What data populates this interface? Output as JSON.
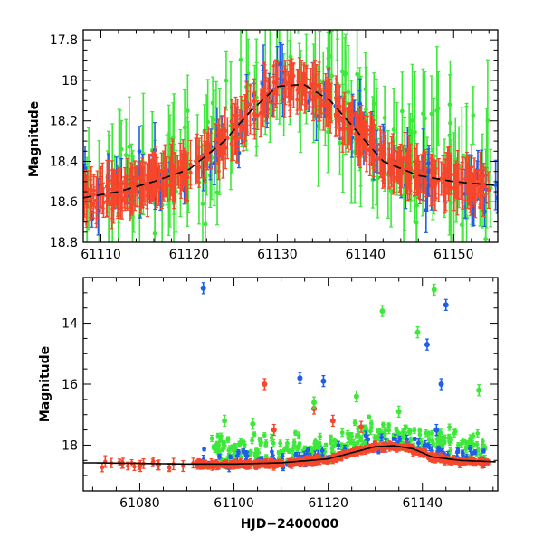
{
  "chart_data": [
    {
      "type": "scatter",
      "panel": "top",
      "title": "",
      "xlabel": "",
      "ylabel": "Magnitude",
      "xlim": [
        61108,
        61155
      ],
      "ylim": [
        18.8,
        17.75
      ],
      "y_inverted": true,
      "xticks": [
        61110,
        61120,
        61130,
        61140,
        61150
      ],
      "yticks": [
        17.8,
        18,
        18.2,
        18.4,
        18.6,
        18.8
      ],
      "series": [
        {
          "name": "red",
          "color": "#f5472c",
          "error_bars": true
        },
        {
          "name": "green",
          "color": "#3ee83a",
          "error_bars": true
        },
        {
          "name": "blue",
          "color": "#1f5ee8",
          "error_bars": true
        }
      ],
      "model_curve": {
        "style": "dashed",
        "color": "#000000",
        "x": [
          61108,
          61112,
          61116,
          61120,
          61124,
          61127,
          61130,
          61133,
          61136,
          61139,
          61142,
          61146,
          61150,
          61155
        ],
        "y": [
          18.58,
          18.55,
          18.5,
          18.44,
          18.3,
          18.15,
          18.03,
          18.02,
          18.1,
          18.25,
          18.4,
          18.47,
          18.5,
          18.52
        ]
      }
    },
    {
      "type": "scatter",
      "panel": "bottom",
      "title": "",
      "xlabel": "HJD−2400000",
      "ylabel": "Magnitude",
      "xlim": [
        61068,
        61156
      ],
      "ylim": [
        19.5,
        12.5
      ],
      "y_inverted": true,
      "xticks": [
        61080,
        61100,
        61120,
        61140
      ],
      "yticks": [
        14,
        16,
        18
      ],
      "series": [
        {
          "name": "red",
          "color": "#f5472c",
          "error_bars": true
        },
        {
          "name": "green",
          "color": "#3ee83a",
          "error_bars": true
        },
        {
          "name": "blue",
          "color": "#1f5ee8",
          "error_bars": true
        }
      ],
      "outliers": {
        "blue": [
          [
            61093.5,
            12.85
          ],
          [
            61114,
            15.8
          ],
          [
            61119,
            15.9
          ],
          [
            61141,
            14.7
          ],
          [
            61145,
            13.4
          ],
          [
            61144,
            16
          ],
          [
            61143,
            17.5
          ]
        ],
        "red": [
          [
            61106.5,
            16
          ],
          [
            61117,
            16.8
          ],
          [
            61108.5,
            17.5
          ],
          [
            61127,
            17.4
          ],
          [
            61121,
            17.2
          ]
        ],
        "green": [
          [
            61131.5,
            13.6
          ],
          [
            61142.5,
            12.9
          ],
          [
            61139,
            14.3
          ],
          [
            61152,
            16.2
          ],
          [
            61126,
            16.4
          ],
          [
            61117,
            16.6
          ],
          [
            61135,
            16.9
          ],
          [
            61098,
            17.2
          ],
          [
            61104,
            17.3
          ]
        ]
      },
      "model_curve": {
        "style": "solid",
        "color": "#000000",
        "x": [
          61070,
          61080,
          61090,
          61100,
          61110,
          61120,
          61125,
          61130,
          61134,
          61138,
          61142,
          61148,
          61156
        ],
        "y": [
          18.58,
          18.6,
          18.62,
          18.62,
          18.58,
          18.45,
          18.25,
          18.05,
          18.02,
          18.12,
          18.38,
          18.5,
          18.55
        ]
      }
    }
  ]
}
